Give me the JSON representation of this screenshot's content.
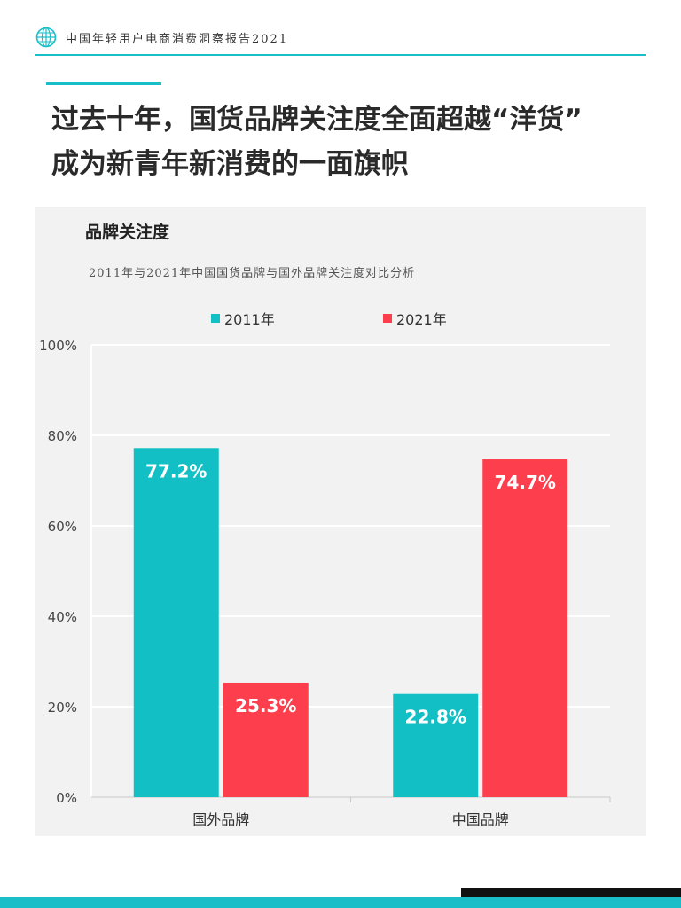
{
  "header": {
    "title": "中国年轻用户电商消费洞察报告2021",
    "logo_icon": "globe-icon"
  },
  "headline": {
    "line1": "过去十年，国货品牌关注度全面超越“洋货”",
    "line2": "成为新青年新消费的一面旗帜"
  },
  "chart_data": {
    "type": "bar",
    "title": "品牌关注度",
    "subtitle": "2011年与2021年中国国货品牌与国外品牌关注度对比分析",
    "categories": [
      "国外品牌",
      "中国品牌"
    ],
    "series": [
      {
        "name": "2011年",
        "values": [
          77.2,
          22.8
        ],
        "labels": [
          "77.2%",
          "22.8%"
        ],
        "color": "#12bfc5"
      },
      {
        "name": "2021年",
        "values": [
          25.3,
          74.7
        ],
        "labels": [
          "25.3%",
          "74.7%"
        ],
        "color": "#fd3e4d"
      }
    ],
    "ylim": [
      0,
      100
    ],
    "yticks": [
      0,
      20,
      40,
      60,
      80,
      100
    ],
    "ytick_labels": [
      "0%",
      "20%",
      "40%",
      "60%",
      "80%",
      "100%"
    ],
    "grid": true,
    "legend_position": "top-center",
    "xlabel": "",
    "ylabel": ""
  }
}
